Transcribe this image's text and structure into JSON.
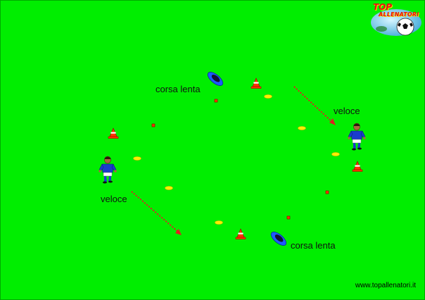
{
  "field_color": "#00ee00",
  "logo": {
    "line1": "TOP",
    "line2": "ALLENATORI"
  },
  "labels": {
    "slow_top": "corsa lenta",
    "fast_right": "veloce",
    "fast_left": "veloce",
    "slow_bottom": "corsa lenta"
  },
  "website": "www.topallenatori.it",
  "colors": {
    "arrow": "#e02020",
    "cone": "#ff3300",
    "disc": "#ffee00",
    "shirt": "#1a3ccc",
    "ring": "#1e5aff"
  },
  "icons": [
    "cone-icon",
    "disc-marker-icon",
    "player-icon",
    "ring-icon",
    "ball-icon"
  ]
}
